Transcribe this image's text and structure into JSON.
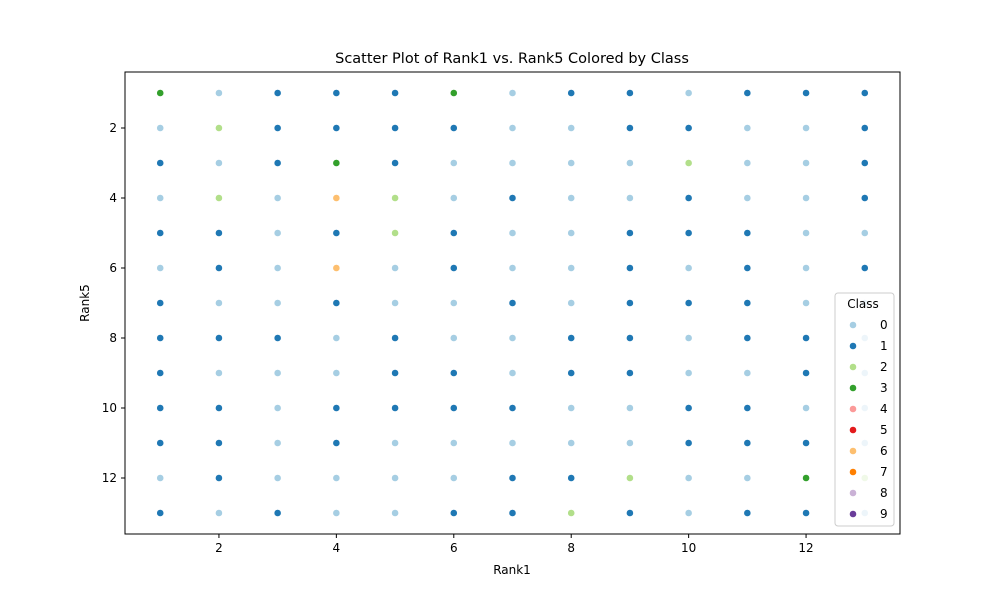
{
  "chart_data": {
    "type": "scatter",
    "title": "Scatter Plot of Rank1 vs. Rank5 Colored by Class",
    "xlabel": "Rank1",
    "ylabel": "Rank5",
    "xlim": [
      0.4,
      13.6
    ],
    "ylim": [
      13.6,
      0.4
    ],
    "y_inverted": true,
    "xticks": [
      2,
      4,
      6,
      8,
      10,
      12
    ],
    "yticks": [
      2,
      4,
      6,
      8,
      10,
      12
    ],
    "grid": false,
    "legend": {
      "title": "Class",
      "placement": "lower-right",
      "entries": [
        "0",
        "1",
        "2",
        "3",
        "4",
        "5",
        "6",
        "7",
        "8",
        "9"
      ]
    },
    "class_colors": [
      "#a6cee3",
      "#1f78b4",
      "#b2df8a",
      "#33a02c",
      "#fb9a99",
      "#e31a1c",
      "#fdbf6f",
      "#ff7f00",
      "#cab2d6",
      "#6a3d9a"
    ],
    "grid_classes": [
      [
        3,
        0,
        1,
        1,
        1,
        3,
        0,
        1,
        1,
        0,
        1,
        1,
        1
      ],
      [
        0,
        2,
        1,
        1,
        1,
        1,
        0,
        0,
        1,
        1,
        0,
        0,
        1
      ],
      [
        1,
        0,
        1,
        3,
        1,
        0,
        0,
        0,
        0,
        2,
        0,
        0,
        1
      ],
      [
        0,
        2,
        0,
        6,
        2,
        0,
        1,
        0,
        0,
        1,
        0,
        0,
        1
      ],
      [
        1,
        1,
        0,
        1,
        2,
        1,
        0,
        0,
        1,
        1,
        1,
        0,
        0
      ],
      [
        0,
        1,
        0,
        6,
        0,
        1,
        0,
        0,
        1,
        0,
        1,
        0,
        1
      ],
      [
        1,
        0,
        0,
        1,
        0,
        0,
        1,
        0,
        1,
        1,
        1,
        0,
        0
      ],
      [
        1,
        1,
        1,
        0,
        1,
        0,
        0,
        1,
        1,
        0,
        1,
        1,
        0
      ],
      [
        1,
        0,
        0,
        0,
        1,
        1,
        0,
        1,
        1,
        0,
        0,
        1,
        0
      ],
      [
        1,
        1,
        0,
        1,
        1,
        1,
        1,
        0,
        0,
        1,
        1,
        0,
        0
      ],
      [
        1,
        1,
        0,
        1,
        0,
        0,
        0,
        0,
        0,
        1,
        1,
        1,
        0
      ],
      [
        0,
        1,
        0,
        0,
        0,
        0,
        1,
        1,
        2,
        0,
        0,
        3,
        2
      ],
      [
        1,
        0,
        1,
        0,
        0,
        1,
        1,
        2,
        1,
        0,
        1,
        1,
        0
      ]
    ]
  }
}
